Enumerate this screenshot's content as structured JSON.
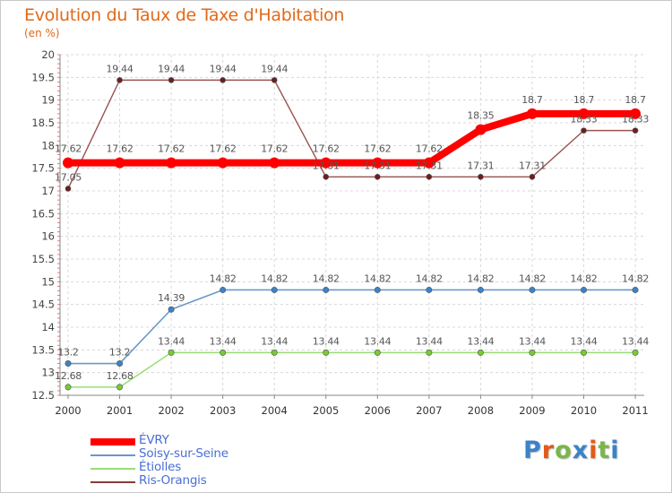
{
  "header": {
    "title": "Evolution du Taux de Taxe d'Habitation",
    "unit": "(en %)"
  },
  "brand": {
    "text": "Proxiti",
    "letters": [
      "P",
      "r",
      "o",
      "x",
      "i",
      "t",
      "i"
    ],
    "colors": [
      "#3a83c9",
      "#e35b17",
      "#7ab648",
      "#3a83c9",
      "#e35b17",
      "#7ab648",
      "#3a83c9"
    ]
  },
  "chart_data": {
    "type": "line",
    "title": "Evolution du Taux de Taxe d'Habitation",
    "ylabel": "(en %)",
    "xlabel": "",
    "x": [
      "2000",
      "2001",
      "2002",
      "2003",
      "2004",
      "2005",
      "2006",
      "2007",
      "2008",
      "2009",
      "2010",
      "2011"
    ],
    "ylim": [
      12.5,
      20
    ],
    "yticks": [
      "12.5",
      "13",
      "13.5",
      "14",
      "14.5",
      "15",
      "15.5",
      "16",
      "16.5",
      "17",
      "17.5",
      "18",
      "18.5",
      "19",
      "19.5",
      "20"
    ],
    "grid": true,
    "legend_position": "bottom-left",
    "series": [
      {
        "name": "ÉVRY",
        "color": "#ff0000",
        "values": [
          17.62,
          17.62,
          17.62,
          17.62,
          17.62,
          17.62,
          17.62,
          17.62,
          18.35,
          18.7,
          18.7,
          18.7
        ],
        "labels": [
          "17.62",
          "17.62",
          "17.62",
          "17.62",
          "17.62",
          "17.62",
          "17.62",
          "17.62",
          "18.35",
          "18.7",
          "18.7",
          "18.7"
        ]
      },
      {
        "name": "Soisy-sur-Seine",
        "color": "#6a98c8",
        "values": [
          13.2,
          13.2,
          14.39,
          14.82,
          14.82,
          14.82,
          14.82,
          14.82,
          14.82,
          14.82,
          14.82,
          14.82
        ],
        "labels": [
          "13.2",
          "13.2",
          "14.39",
          "14.82",
          "14.82",
          "14.82",
          "14.82",
          "14.82",
          "14.82",
          "14.82",
          "14.82",
          "14.82"
        ]
      },
      {
        "name": "Étiolles",
        "color": "#99dd77",
        "values": [
          12.68,
          12.68,
          13.44,
          13.44,
          13.44,
          13.44,
          13.44,
          13.44,
          13.44,
          13.44,
          13.44,
          13.44
        ],
        "labels": [
          "12.68",
          "12.68",
          "13.44",
          "13.44",
          "13.44",
          "13.44",
          "13.44",
          "13.44",
          "13.44",
          "13.44",
          "13.44",
          "13.44"
        ]
      },
      {
        "name": "Ris-Orangis",
        "color": "#8b3a3a",
        "values": [
          17.05,
          19.44,
          19.44,
          19.44,
          19.44,
          17.31,
          17.31,
          17.31,
          17.31,
          17.31,
          18.33,
          18.33
        ],
        "labels": [
          "17.05",
          "19.44",
          "19.44",
          "19.44",
          "19.44",
          "17.31",
          "17.31",
          "17.31",
          "17.31",
          "17.31",
          "18.33",
          "18.33"
        ]
      }
    ]
  }
}
